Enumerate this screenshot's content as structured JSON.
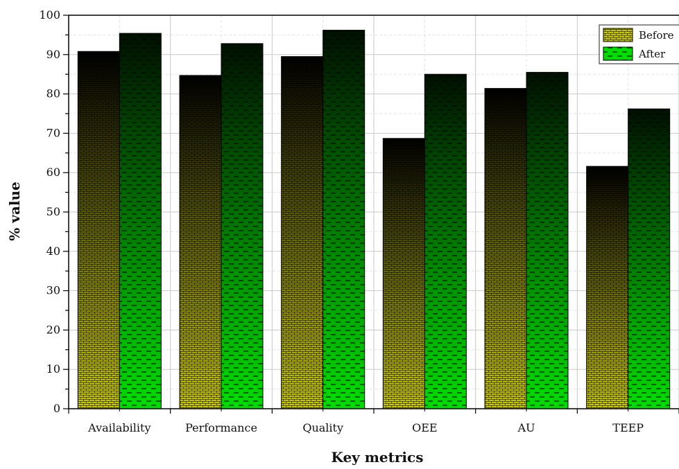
{
  "chart_data": {
    "type": "bar",
    "title": "",
    "xlabel": "Key metrics",
    "ylabel": "% value",
    "ylim": [
      0,
      100
    ],
    "yticks": [
      0,
      10,
      20,
      30,
      40,
      50,
      60,
      70,
      80,
      90,
      100
    ],
    "grid": true,
    "legend_position": "top-right",
    "categories": [
      "Availability",
      "Performance",
      "Quality",
      "OEE",
      "AU",
      "TEEP"
    ],
    "series": [
      {
        "name": "Before",
        "values": [
          90.8,
          84.7,
          89.5,
          68.7,
          81.4,
          61.6
        ],
        "color_top": "#000000",
        "color_bottom": "#c8c800",
        "pattern": "brick"
      },
      {
        "name": "After",
        "values": [
          95.4,
          92.8,
          96.2,
          85.0,
          85.5,
          76.2
        ],
        "color_top": "#001000",
        "color_bottom": "#00dd00",
        "pattern": "dash"
      }
    ]
  }
}
